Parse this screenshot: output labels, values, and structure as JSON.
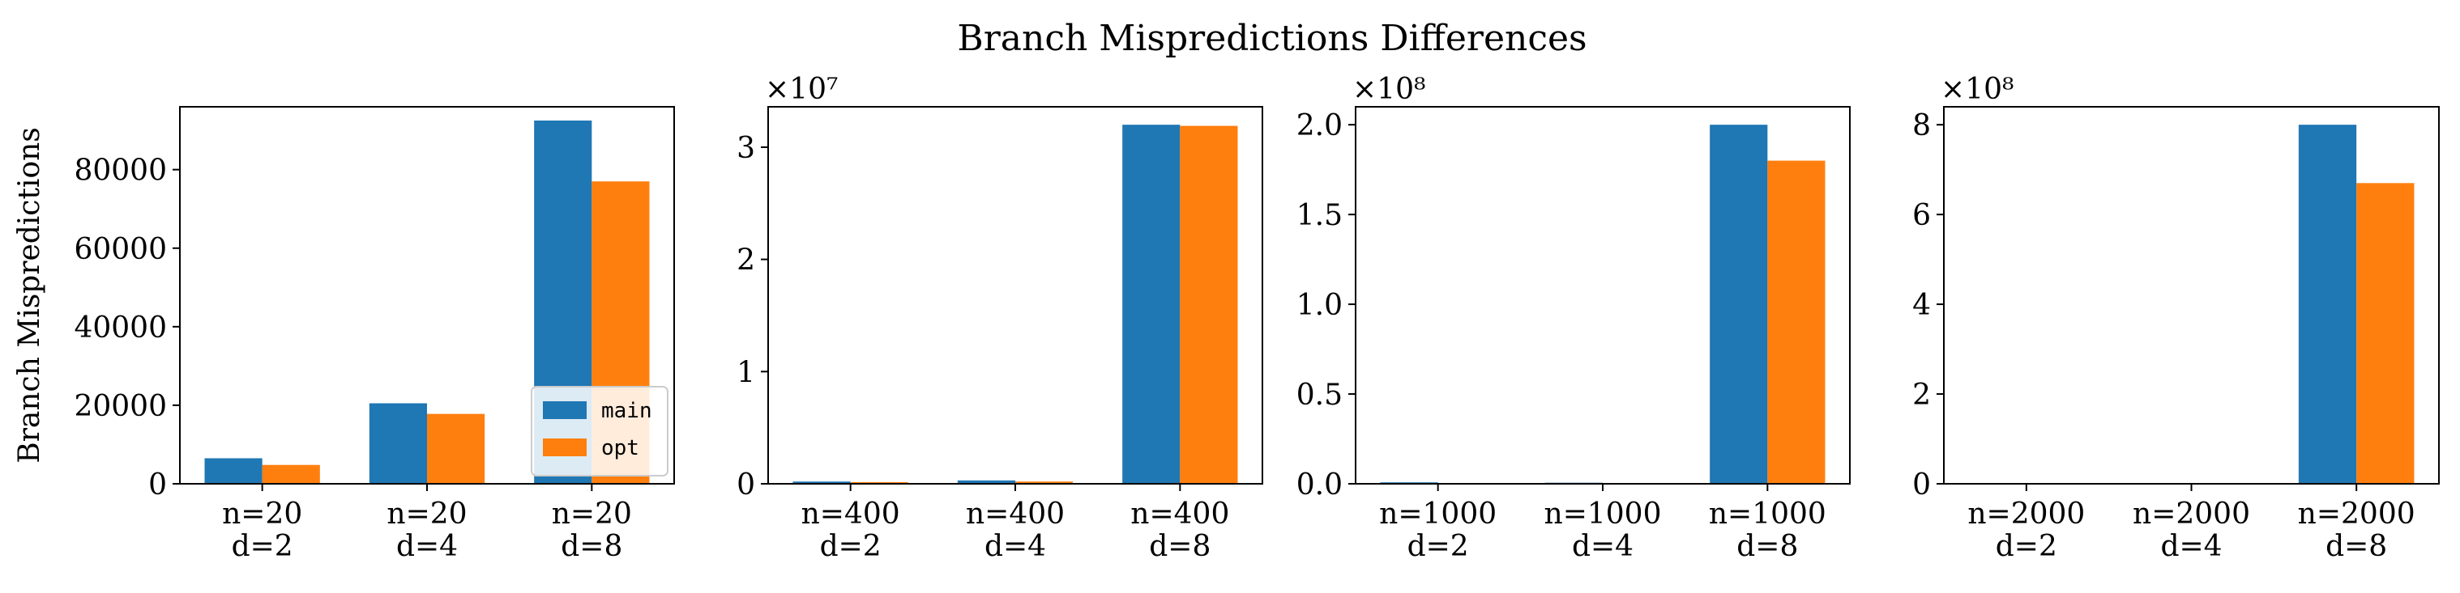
{
  "figure": {
    "title": "Branch Mispredictions Differences"
  },
  "colors": {
    "main": "#1f77b4",
    "opt": "#ff7f0e"
  },
  "chart_data": [
    {
      "type": "bar",
      "categories": [
        [
          "n=20",
          "d=2"
        ],
        [
          "n=20",
          "d=4"
        ],
        [
          "n=20",
          "d=8"
        ]
      ],
      "series": [
        {
          "name": "main",
          "values": [
            6500,
            20500,
            92500
          ]
        },
        {
          "name": "opt",
          "values": [
            4800,
            17800,
            77000
          ]
        }
      ],
      "ylabel": "Branch Mispredictions",
      "ylim": [
        0,
        96000
      ],
      "yticks": [
        0,
        20000,
        40000,
        60000,
        80000
      ],
      "ytick_labels": [
        "0",
        "20000",
        "40000",
        "60000",
        "80000"
      ],
      "multiplier_label": "",
      "legend": {
        "placement": "lower-right",
        "entries": [
          "main",
          "opt"
        ]
      }
    },
    {
      "type": "bar",
      "categories": [
        [
          "n=400",
          "d=2"
        ],
        [
          "n=400",
          "d=4"
        ],
        [
          "n=400",
          "d=8"
        ]
      ],
      "series": [
        {
          "name": "main",
          "values": [
            200000,
            300000,
            32000000
          ]
        },
        {
          "name": "opt",
          "values": [
            150000,
            200000,
            31900000
          ]
        }
      ],
      "ylabel": "",
      "ylim": [
        0,
        33600000
      ],
      "yticks": [
        0,
        10000000,
        20000000,
        30000000
      ],
      "ytick_labels": [
        "0",
        "1",
        "2",
        "3"
      ],
      "multiplier_label": "×10⁷"
    },
    {
      "type": "bar",
      "categories": [
        [
          "n=1000",
          "d=2"
        ],
        [
          "n=1000",
          "d=4"
        ],
        [
          "n=1000",
          "d=8"
        ]
      ],
      "series": [
        {
          "name": "main",
          "values": [
            800000,
            600000,
            200000000
          ]
        },
        {
          "name": "opt",
          "values": [
            300000,
            200000,
            180000000
          ]
        }
      ],
      "ylabel": "",
      "ylim": [
        0,
        210000000
      ],
      "yticks": [
        0,
        50000000,
        100000000,
        150000000,
        200000000
      ],
      "ytick_labels": [
        "0.0",
        "0.5",
        "1.0",
        "1.5",
        "2.0"
      ],
      "multiplier_label": "×10⁸"
    },
    {
      "type": "bar",
      "categories": [
        [
          "n=2000",
          "d=2"
        ],
        [
          "n=2000",
          "d=4"
        ],
        [
          "n=2000",
          "d=8"
        ]
      ],
      "series": [
        {
          "name": "main",
          "values": [
            1500000,
            1200000,
            800000000
          ]
        },
        {
          "name": "opt",
          "values": [
            600000,
            400000,
            670000000
          ]
        }
      ],
      "ylabel": "",
      "ylim": [
        0,
        840000000
      ],
      "yticks": [
        0,
        200000000,
        400000000,
        600000000,
        800000000
      ],
      "ytick_labels": [
        "0",
        "2",
        "4",
        "6",
        "8"
      ],
      "multiplier_label": "×10⁸"
    }
  ]
}
